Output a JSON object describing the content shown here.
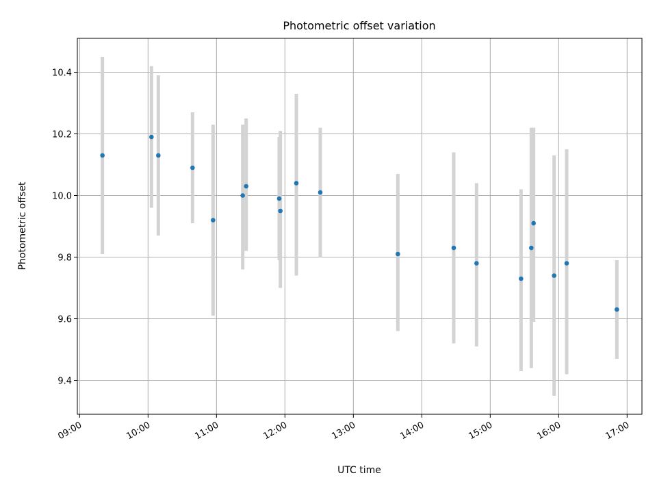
{
  "chart_data": {
    "type": "scatter",
    "title": "Photometric offset variation",
    "xlabel": "UTC time",
    "ylabel": "Photometric offset",
    "x_tick_labels": [
      "09:00",
      "10:00",
      "11:00",
      "12:00",
      "13:00",
      "14:00",
      "15:00",
      "16:00",
      "17:00"
    ],
    "y_tick_labels": [
      "9.4",
      "9.6",
      "9.8",
      "10.0",
      "10.2",
      "10.4"
    ],
    "y_ticks": [
      9.4,
      9.6,
      9.8,
      10.0,
      10.2,
      10.4
    ],
    "xlim": [
      "08:58",
      "17:13"
    ],
    "ylim": [
      9.29,
      10.51
    ],
    "grid": true,
    "error_bars": true,
    "colors": {
      "points": "#1f77b4",
      "error_bars": "#d3d3d3",
      "grid": "#b0b0b0"
    },
    "points": [
      {
        "x": "09:20",
        "y": 10.13,
        "ylow": 9.81,
        "yhigh": 10.45
      },
      {
        "x": "10:03",
        "y": 10.19,
        "ylow": 9.96,
        "yhigh": 10.42
      },
      {
        "x": "10:09",
        "y": 10.13,
        "ylow": 9.87,
        "yhigh": 10.39
      },
      {
        "x": "10:39",
        "y": 10.09,
        "ylow": 9.91,
        "yhigh": 10.27
      },
      {
        "x": "10:57",
        "y": 9.92,
        "ylow": 9.61,
        "yhigh": 10.23
      },
      {
        "x": "11:23",
        "y": 10.0,
        "ylow": 9.76,
        "yhigh": 10.23
      },
      {
        "x": "11:26",
        "y": 10.03,
        "ylow": 9.82,
        "yhigh": 10.25
      },
      {
        "x": "11:55",
        "y": 9.99,
        "ylow": 9.79,
        "yhigh": 10.19
      },
      {
        "x": "11:56",
        "y": 9.95,
        "ylow": 9.7,
        "yhigh": 10.21
      },
      {
        "x": "12:10",
        "y": 10.04,
        "ylow": 9.74,
        "yhigh": 10.33
      },
      {
        "x": "12:31",
        "y": 10.01,
        "ylow": 9.8,
        "yhigh": 10.22
      },
      {
        "x": "13:39",
        "y": 9.81,
        "ylow": 9.56,
        "yhigh": 10.07
      },
      {
        "x": "14:28",
        "y": 9.83,
        "ylow": 9.52,
        "yhigh": 10.14
      },
      {
        "x": "14:48",
        "y": 9.78,
        "ylow": 9.51,
        "yhigh": 10.04
      },
      {
        "x": "15:27",
        "y": 9.73,
        "ylow": 9.43,
        "yhigh": 10.02
      },
      {
        "x": "15:36",
        "y": 9.83,
        "ylow": 9.44,
        "yhigh": 10.22
      },
      {
        "x": "15:38",
        "y": 9.91,
        "ylow": 9.59,
        "yhigh": 10.22
      },
      {
        "x": "15:56",
        "y": 9.74,
        "ylow": 9.35,
        "yhigh": 10.13
      },
      {
        "x": "16:07",
        "y": 9.78,
        "ylow": 9.42,
        "yhigh": 10.15
      },
      {
        "x": "16:51",
        "y": 9.63,
        "ylow": 9.47,
        "yhigh": 9.79
      }
    ]
  }
}
